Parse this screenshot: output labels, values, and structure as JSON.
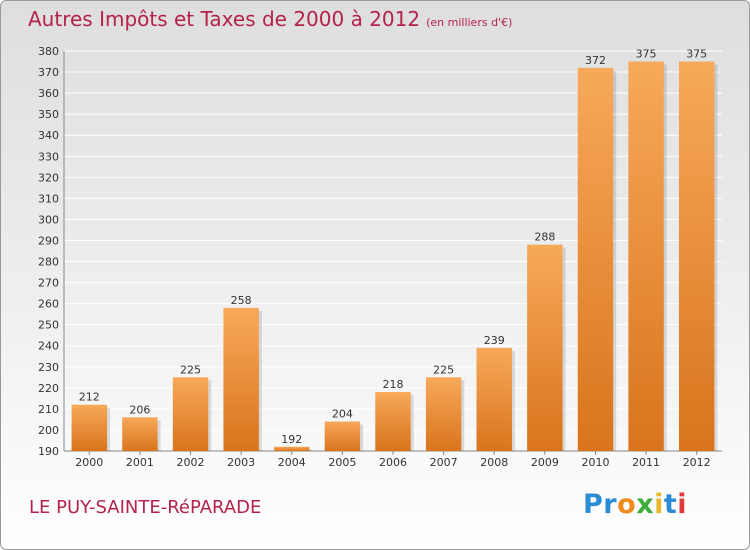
{
  "header": {
    "title": "Autres Impôts et Taxes de 2000 à 2012",
    "subtitle": "(en milliers d'€)"
  },
  "footer": {
    "commune": "LE PUY-SAINTE-RéPARADE",
    "logo_letters": [
      {
        "char": "P",
        "color": "#2b8cd6"
      },
      {
        "char": "r",
        "color": "#2b8cd6"
      },
      {
        "char": "o",
        "color": "#f08a1c"
      },
      {
        "char": "x",
        "color": "#3cae3c"
      },
      {
        "char": "i",
        "color": "#e6b82a"
      },
      {
        "char": "t",
        "color": "#2b8cd6"
      },
      {
        "char": "i",
        "color": "#e03a3a"
      }
    ]
  },
  "colors": {
    "bar_light": "#f7a95a",
    "bar_dark": "#d9741c",
    "gridline": "#ffffff",
    "text_accent": "#b5224a"
  },
  "chart_data": {
    "type": "bar",
    "title": "Autres Impôts et Taxes de 2000 à 2012",
    "subtitle": "(en milliers d'€)",
    "xlabel": "",
    "ylabel": "",
    "categories": [
      "2000",
      "2001",
      "2002",
      "2003",
      "2004",
      "2005",
      "2006",
      "2007",
      "2008",
      "2009",
      "2010",
      "2011",
      "2012"
    ],
    "values": [
      212,
      206,
      225,
      258,
      192,
      204,
      218,
      225,
      239,
      288,
      372,
      375,
      375
    ],
    "ylim": [
      190,
      380
    ],
    "ytick_step": 10,
    "grid": true,
    "legend": "none"
  }
}
